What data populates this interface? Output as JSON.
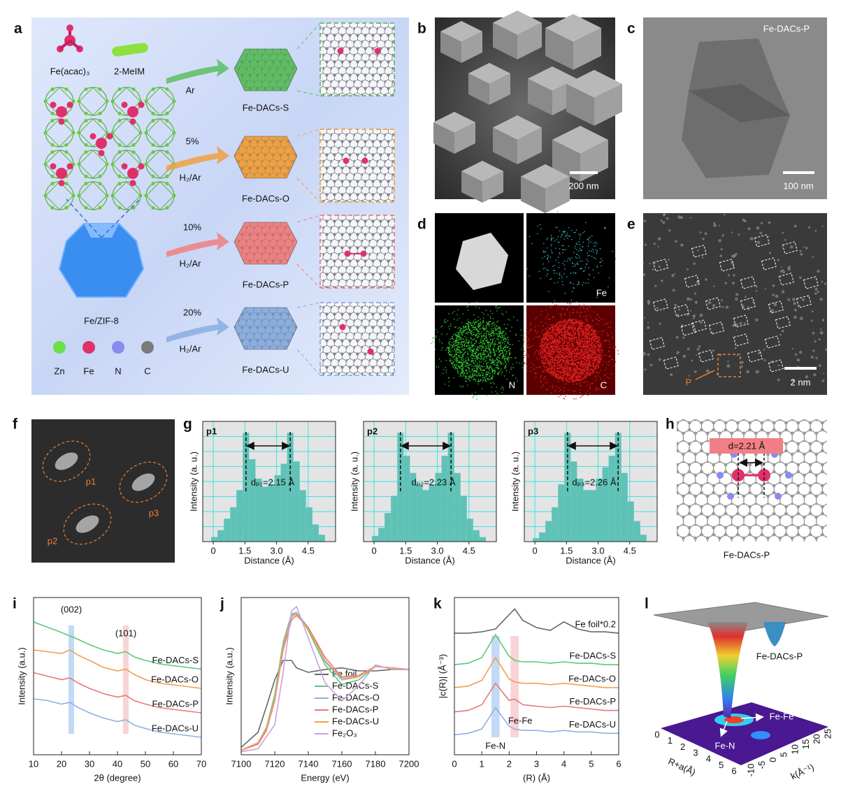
{
  "panels": {
    "a": {
      "label": "a",
      "precursor_fe": "Fe(acac)₃",
      "precursor_melm": "2-MeIM",
      "framework": "Fe/ZIF-8",
      "routes": [
        {
          "gas": "Ar",
          "product": "Fe-DACs-S"
        },
        {
          "conc": "5%",
          "gas": "H₂/Ar",
          "product": "Fe-DACs-O"
        },
        {
          "conc": "10%",
          "gas": "H₂/Ar",
          "product": "Fe-DACs-P"
        },
        {
          "conc": "20%",
          "gas": "H₂/Ar",
          "product": "Fe-DACs-U"
        }
      ],
      "legend": [
        "Zn",
        "Fe",
        "N",
        "C"
      ]
    },
    "b": {
      "label": "b",
      "scale": "200 nm"
    },
    "c": {
      "label": "c",
      "title": "Fe-DACs-P",
      "scale": "100 nm"
    },
    "d": {
      "label": "d",
      "maps": [
        "Fe",
        "N",
        "C"
      ]
    },
    "e": {
      "label": "e",
      "scale": "2 nm",
      "marker": "P"
    },
    "f": {
      "label": "f",
      "regions": [
        "p1",
        "p3",
        "p2"
      ]
    },
    "g": {
      "label": "g"
    },
    "h": {
      "label": "h",
      "distance": "d=2.21 Å",
      "caption": "Fe-DACs-P"
    },
    "l": {
      "label": "l",
      "title": "Fe-DACs-P",
      "peak1": "Fe-Fe",
      "peak2": "Fe-N",
      "xlabel": "R+a(Å)",
      "ylabel": "k(Å⁻¹)",
      "xticks": [
        0,
        1,
        2,
        3,
        4,
        5,
        6
      ],
      "yticks": [
        -10,
        -5,
        0,
        5,
        10,
        15,
        20,
        25
      ]
    }
  },
  "chart_data": [
    {
      "type": "histogram",
      "title": "p1",
      "annotation": "dₚ₁=2.15 Å",
      "xlabel": "Distance (Å)",
      "ylabel": "Intensity (a. u.)",
      "bins": [
        -0.1,
        0.2,
        0.5,
        0.8,
        1.1,
        1.4,
        1.7,
        2.0,
        2.3,
        2.6,
        2.9,
        3.2,
        3.5,
        3.8,
        4.1,
        4.4,
        4.7,
        5.0,
        5.3
      ],
      "values": [
        0.04,
        0.1,
        0.2,
        0.3,
        0.45,
        0.95,
        0.72,
        0.55,
        0.48,
        0.5,
        0.58,
        0.68,
        0.95,
        0.7,
        0.45,
        0.3,
        0.15,
        0.06
      ],
      "color": "#5fc2b7",
      "xlim": [
        -0.5,
        5.8
      ],
      "ylim": [
        0,
        1.05
      ],
      "xticks": [
        0,
        1.5,
        {
          "value": 3,
          "label": "3.0"
        },
        4.5
      ],
      "grid": true
    },
    {
      "type": "histogram",
      "title": "p2",
      "annotation": "dₚ₂=2.23 Å",
      "xlabel": "Distance (Å)",
      "ylabel": "Intensity (a. u.)",
      "bins": [
        -0.1,
        0.2,
        0.5,
        0.8,
        1.1,
        1.4,
        1.7,
        2.0,
        2.3,
        2.6,
        2.9,
        3.2,
        3.5,
        3.8,
        4.1,
        4.4,
        4.7,
        5.0,
        5.3
      ],
      "values": [
        0.05,
        0.12,
        0.25,
        0.4,
        0.95,
        0.75,
        0.6,
        0.5,
        0.45,
        0.5,
        0.6,
        0.75,
        0.95,
        0.6,
        0.4,
        0.2,
        0.1,
        0.04
      ],
      "color": "#5fc2b7",
      "xlim": [
        -0.5,
        5.8
      ],
      "ylim": [
        0,
        1.05
      ],
      "xticks": [
        0,
        1.5,
        {
          "value": 3,
          "label": "3.0"
        },
        4.5
      ],
      "grid": true
    },
    {
      "type": "histogram",
      "title": "p3",
      "annotation": "dₚ₃=2.26 Å",
      "xlabel": "Distance (Å)",
      "ylabel": "Intensity (a. u.)",
      "bins": [
        -0.1,
        0.2,
        0.5,
        0.8,
        1.1,
        1.4,
        1.7,
        2.0,
        2.3,
        2.6,
        2.9,
        3.2,
        3.5,
        3.8,
        4.1,
        4.4,
        4.7,
        5.0,
        5.3
      ],
      "values": [
        0.03,
        0.08,
        0.18,
        0.3,
        0.5,
        0.95,
        0.7,
        0.55,
        0.45,
        0.45,
        0.55,
        0.65,
        0.75,
        0.95,
        0.6,
        0.35,
        0.18,
        0.06
      ],
      "color": "#5fc2b7",
      "xlim": [
        -0.5,
        5.8
      ],
      "ylim": [
        0,
        1.05
      ],
      "xticks": [
        0,
        1.5,
        {
          "value": 3,
          "label": "3.0"
        },
        4.5
      ],
      "grid": true
    },
    {
      "type": "line",
      "label": "i",
      "xlabel": "2θ (degree)",
      "ylabel": "Intensity (a.u.)",
      "legend": "inline",
      "x": [
        10,
        15,
        20,
        23,
        26,
        30,
        35,
        40,
        43,
        46,
        50,
        55,
        60,
        65,
        70
      ],
      "series": [
        {
          "name": "Fe-DACs-S",
          "color": "#5cc87a",
          "values": [
            8.6,
            8.3,
            8.0,
            7.8,
            7.6,
            7.3,
            7.0,
            6.8,
            6.9,
            6.6,
            6.4,
            6.2,
            6.1,
            6.0,
            5.9
          ]
        },
        {
          "name": "Fe-DACs-O",
          "color": "#f0a050",
          "values": [
            7.0,
            6.9,
            6.8,
            7.0,
            6.7,
            6.4,
            6.0,
            5.8,
            5.9,
            5.6,
            5.3,
            5.1,
            5.0,
            4.9,
            4.8
          ]
        },
        {
          "name": "Fe-DACs-P",
          "color": "#e87878",
          "values": [
            5.7,
            5.5,
            5.3,
            5.4,
            5.1,
            4.8,
            4.5,
            4.3,
            4.4,
            4.1,
            3.9,
            3.7,
            3.6,
            3.5,
            3.4
          ]
        },
        {
          "name": "Fe-DACs-U",
          "color": "#8fb0e0",
          "values": [
            4.2,
            4.1,
            3.9,
            4.0,
            3.7,
            3.4,
            3.1,
            2.9,
            3.0,
            2.7,
            2.5,
            2.3,
            2.2,
            2.1,
            2.0
          ]
        }
      ],
      "highlights": [
        {
          "x": [
            22.5,
            24.5
          ],
          "color": "#bcd6f5",
          "label": "(002)"
        },
        {
          "x": [
            42,
            44
          ],
          "color": "#f8cfd2",
          "label": "(101)"
        }
      ],
      "xlim": [
        10,
        70
      ],
      "ylim": [
        1,
        10
      ],
      "xticks": [
        10,
        20,
        30,
        40,
        50,
        60,
        70
      ]
    },
    {
      "type": "line",
      "label": "j",
      "xlabel": "Energy (eV)",
      "ylabel": "Intensity (a.u.)",
      "legend": "lower right",
      "x": [
        7100,
        7110,
        7115,
        7120,
        7125,
        7130,
        7133,
        7140,
        7150,
        7160,
        7170,
        7180,
        7190,
        7200
      ],
      "series": [
        {
          "name": "Fe foil",
          "color": "#666666",
          "values": [
            0.5,
            1.5,
            3.2,
            5.0,
            6.3,
            6.3,
            5.8,
            5.5,
            5.7,
            5.8,
            5.6,
            5.6,
            5.7,
            5.7
          ]
        },
        {
          "name": "Fe-DACs-S",
          "color": "#5cc87a",
          "values": [
            0.3,
            0.8,
            1.8,
            4.0,
            7.5,
            9.4,
            9.5,
            8.3,
            6.0,
            4.7,
            5.0,
            5.9,
            5.8,
            5.7
          ]
        },
        {
          "name": "Fe-DACs-O",
          "color": "#8fb0e0",
          "values": [
            0.3,
            0.8,
            1.7,
            3.8,
            7.3,
            9.3,
            9.5,
            8.5,
            6.2,
            5.0,
            5.2,
            5.9,
            5.8,
            5.7
          ]
        },
        {
          "name": "Fe-DACs-P",
          "color": "#e87878",
          "values": [
            0.3,
            0.7,
            1.6,
            3.6,
            7.0,
            9.0,
            9.3,
            8.5,
            6.5,
            5.2,
            5.3,
            5.9,
            5.8,
            5.7
          ]
        },
        {
          "name": "Fe-DACs-U",
          "color": "#f0a050",
          "values": [
            0.3,
            0.8,
            1.7,
            3.7,
            7.2,
            9.2,
            9.4,
            8.4,
            6.3,
            5.1,
            5.2,
            5.9,
            5.8,
            5.7
          ]
        },
        {
          "name": "Fe₂O₃",
          "color": "#c8a0e0",
          "values": [
            0.2,
            0.4,
            1.2,
            2.0,
            5.5,
            9.6,
            9.9,
            7.8,
            4.8,
            3.6,
            4.6,
            6.0,
            5.7,
            5.7
          ]
        }
      ],
      "xlim": [
        7100,
        7200
      ],
      "ylim": [
        0,
        10.5
      ],
      "xticks": [
        7100,
        7120,
        7140,
        7160,
        7180,
        7200
      ]
    },
    {
      "type": "line",
      "label": "k",
      "xlabel": "(R) (Å)",
      "ylabel": "|c(R)| (Å⁻³)",
      "legend": "inline",
      "x": [
        0,
        0.5,
        1.0,
        1.5,
        2.0,
        2.2,
        2.5,
        3.0,
        3.5,
        4.0,
        4.5,
        5.0,
        5.5,
        6.0
      ],
      "series": [
        {
          "name": "Fe foil*0.2",
          "color": "#666666",
          "values": [
            8.5,
            8.5,
            8.6,
            8.8,
            9.8,
            10.2,
            9.4,
            8.9,
            8.7,
            9.3,
            8.8,
            8.6,
            8.6,
            8.5
          ]
        },
        {
          "name": "Fe-DACs-S",
          "color": "#5cc87a",
          "values": [
            6.3,
            6.4,
            6.8,
            8.4,
            6.9,
            6.6,
            6.5,
            6.5,
            6.4,
            6.5,
            6.4,
            6.4,
            6.3,
            6.3
          ]
        },
        {
          "name": "Fe-DACs-O",
          "color": "#f0a050",
          "values": [
            4.7,
            4.8,
            5.2,
            6.8,
            5.3,
            5.1,
            5.0,
            5.0,
            4.9,
            5.0,
            4.9,
            4.8,
            4.7,
            4.7
          ]
        },
        {
          "name": "Fe-DACs-P",
          "color": "#e87878",
          "values": [
            3.0,
            3.1,
            3.5,
            5.0,
            3.8,
            3.9,
            3.5,
            3.4,
            3.3,
            3.4,
            3.3,
            3.2,
            3.1,
            3.1
          ]
        },
        {
          "name": "Fe-DACs-U",
          "color": "#8fb0e0",
          "values": [
            1.4,
            1.5,
            1.8,
            3.3,
            2.0,
            1.8,
            1.7,
            1.7,
            1.6,
            1.7,
            1.6,
            1.6,
            1.5,
            1.5
          ]
        }
      ],
      "highlights": [
        {
          "x": [
            1.35,
            1.65
          ],
          "color": "#bcd6f5",
          "label": "Fe-N"
        },
        {
          "x": [
            2.05,
            2.35
          ],
          "color": "#f8cfd2",
          "label": "Fe-Fe"
        }
      ],
      "xlim": [
        0,
        6
      ],
      "ylim": [
        0,
        11
      ],
      "xticks": [
        0,
        1,
        2,
        3,
        4,
        5,
        6
      ]
    }
  ]
}
